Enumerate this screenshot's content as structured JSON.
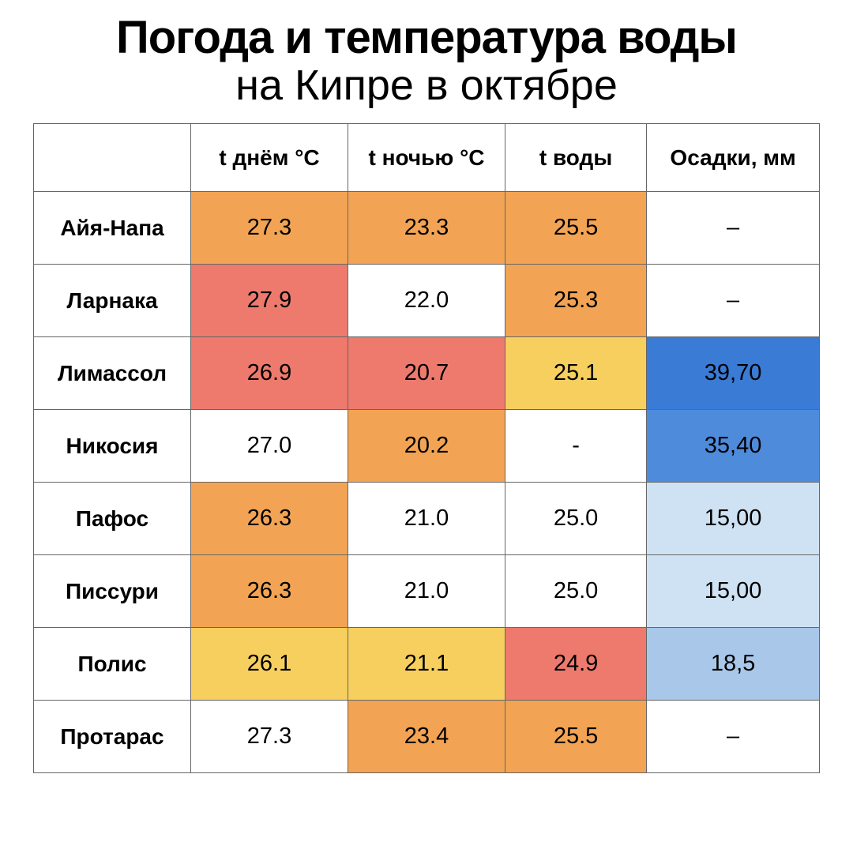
{
  "title": {
    "bold": "Погода и температура воды",
    "light": "на Кипре в октябре"
  },
  "palette": {
    "white": "#ffffff",
    "orange": "#f2a454",
    "coral": "#ed7a6d",
    "yellow": "#f7cf5e",
    "blue1": "#3a7bd5",
    "blue2": "#4f8bdb",
    "blue3": "#cfe2f3",
    "blue4": "#a9c7e8"
  },
  "table": {
    "columns": [
      "",
      "t днём °C",
      "t ночью °C",
      "t воды",
      "Осадки, мм"
    ],
    "rows": [
      {
        "name": "Айя-Напа",
        "cells": [
          {
            "v": "27.3",
            "c": "orange"
          },
          {
            "v": "23.3",
            "c": "orange"
          },
          {
            "v": "25.5",
            "c": "orange"
          },
          {
            "v": "–",
            "c": "white"
          }
        ]
      },
      {
        "name": "Ларнака",
        "cells": [
          {
            "v": "27.9",
            "c": "coral"
          },
          {
            "v": "22.0",
            "c": "white"
          },
          {
            "v": "25.3",
            "c": "orange"
          },
          {
            "v": "–",
            "c": "white"
          }
        ]
      },
      {
        "name": "Лимассол",
        "cells": [
          {
            "v": "26.9",
            "c": "coral"
          },
          {
            "v": "20.7",
            "c": "coral"
          },
          {
            "v": "25.1",
            "c": "yellow"
          },
          {
            "v": "39,70",
            "c": "blue1"
          }
        ]
      },
      {
        "name": "Никосия",
        "cells": [
          {
            "v": "27.0",
            "c": "white"
          },
          {
            "v": "20.2",
            "c": "orange"
          },
          {
            "v": "-",
            "c": "white"
          },
          {
            "v": "35,40",
            "c": "blue2"
          }
        ]
      },
      {
        "name": "Пафос",
        "cells": [
          {
            "v": "26.3",
            "c": "orange"
          },
          {
            "v": "21.0",
            "c": "white"
          },
          {
            "v": "25.0",
            "c": "white"
          },
          {
            "v": "15,00",
            "c": "blue3"
          }
        ]
      },
      {
        "name": "Писсури",
        "cells": [
          {
            "v": "26.3",
            "c": "orange"
          },
          {
            "v": "21.0",
            "c": "white"
          },
          {
            "v": "25.0",
            "c": "white"
          },
          {
            "v": "15,00",
            "c": "blue3"
          }
        ]
      },
      {
        "name": "Полис",
        "cells": [
          {
            "v": "26.1",
            "c": "yellow"
          },
          {
            "v": "21.1",
            "c": "yellow"
          },
          {
            "v": "24.9",
            "c": "coral"
          },
          {
            "v": "18,5",
            "c": "blue4"
          }
        ]
      },
      {
        "name": "Протарас",
        "cells": [
          {
            "v": "27.3",
            "c": "white"
          },
          {
            "v": "23.4",
            "c": "orange"
          },
          {
            "v": "25.5",
            "c": "orange"
          },
          {
            "v": "–",
            "c": "white"
          }
        ]
      }
    ]
  }
}
